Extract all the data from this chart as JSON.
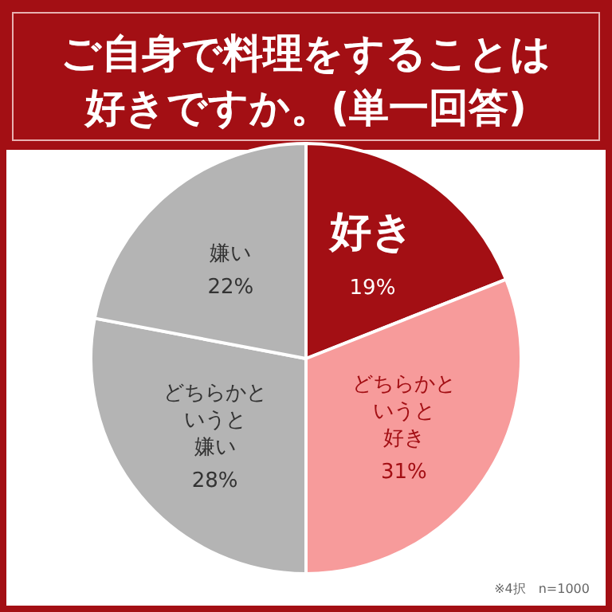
{
  "chart_data": {
    "type": "pie",
    "title": "ご自身で料理をすることは好きですか。(単一回答)",
    "categories": [
      "好き",
      "どちらかというと好き",
      "どちらかというと嫌い",
      "嫌い"
    ],
    "values": [
      19,
      31,
      28,
      22
    ],
    "colors": [
      "#a30f14",
      "#f79b9b",
      "#b4b4b4",
      "#b4b4b4"
    ],
    "value_labels": [
      "19%",
      "31%",
      "28%",
      "22%"
    ],
    "annotations": [
      "※4択　n=1000"
    ]
  }
}
